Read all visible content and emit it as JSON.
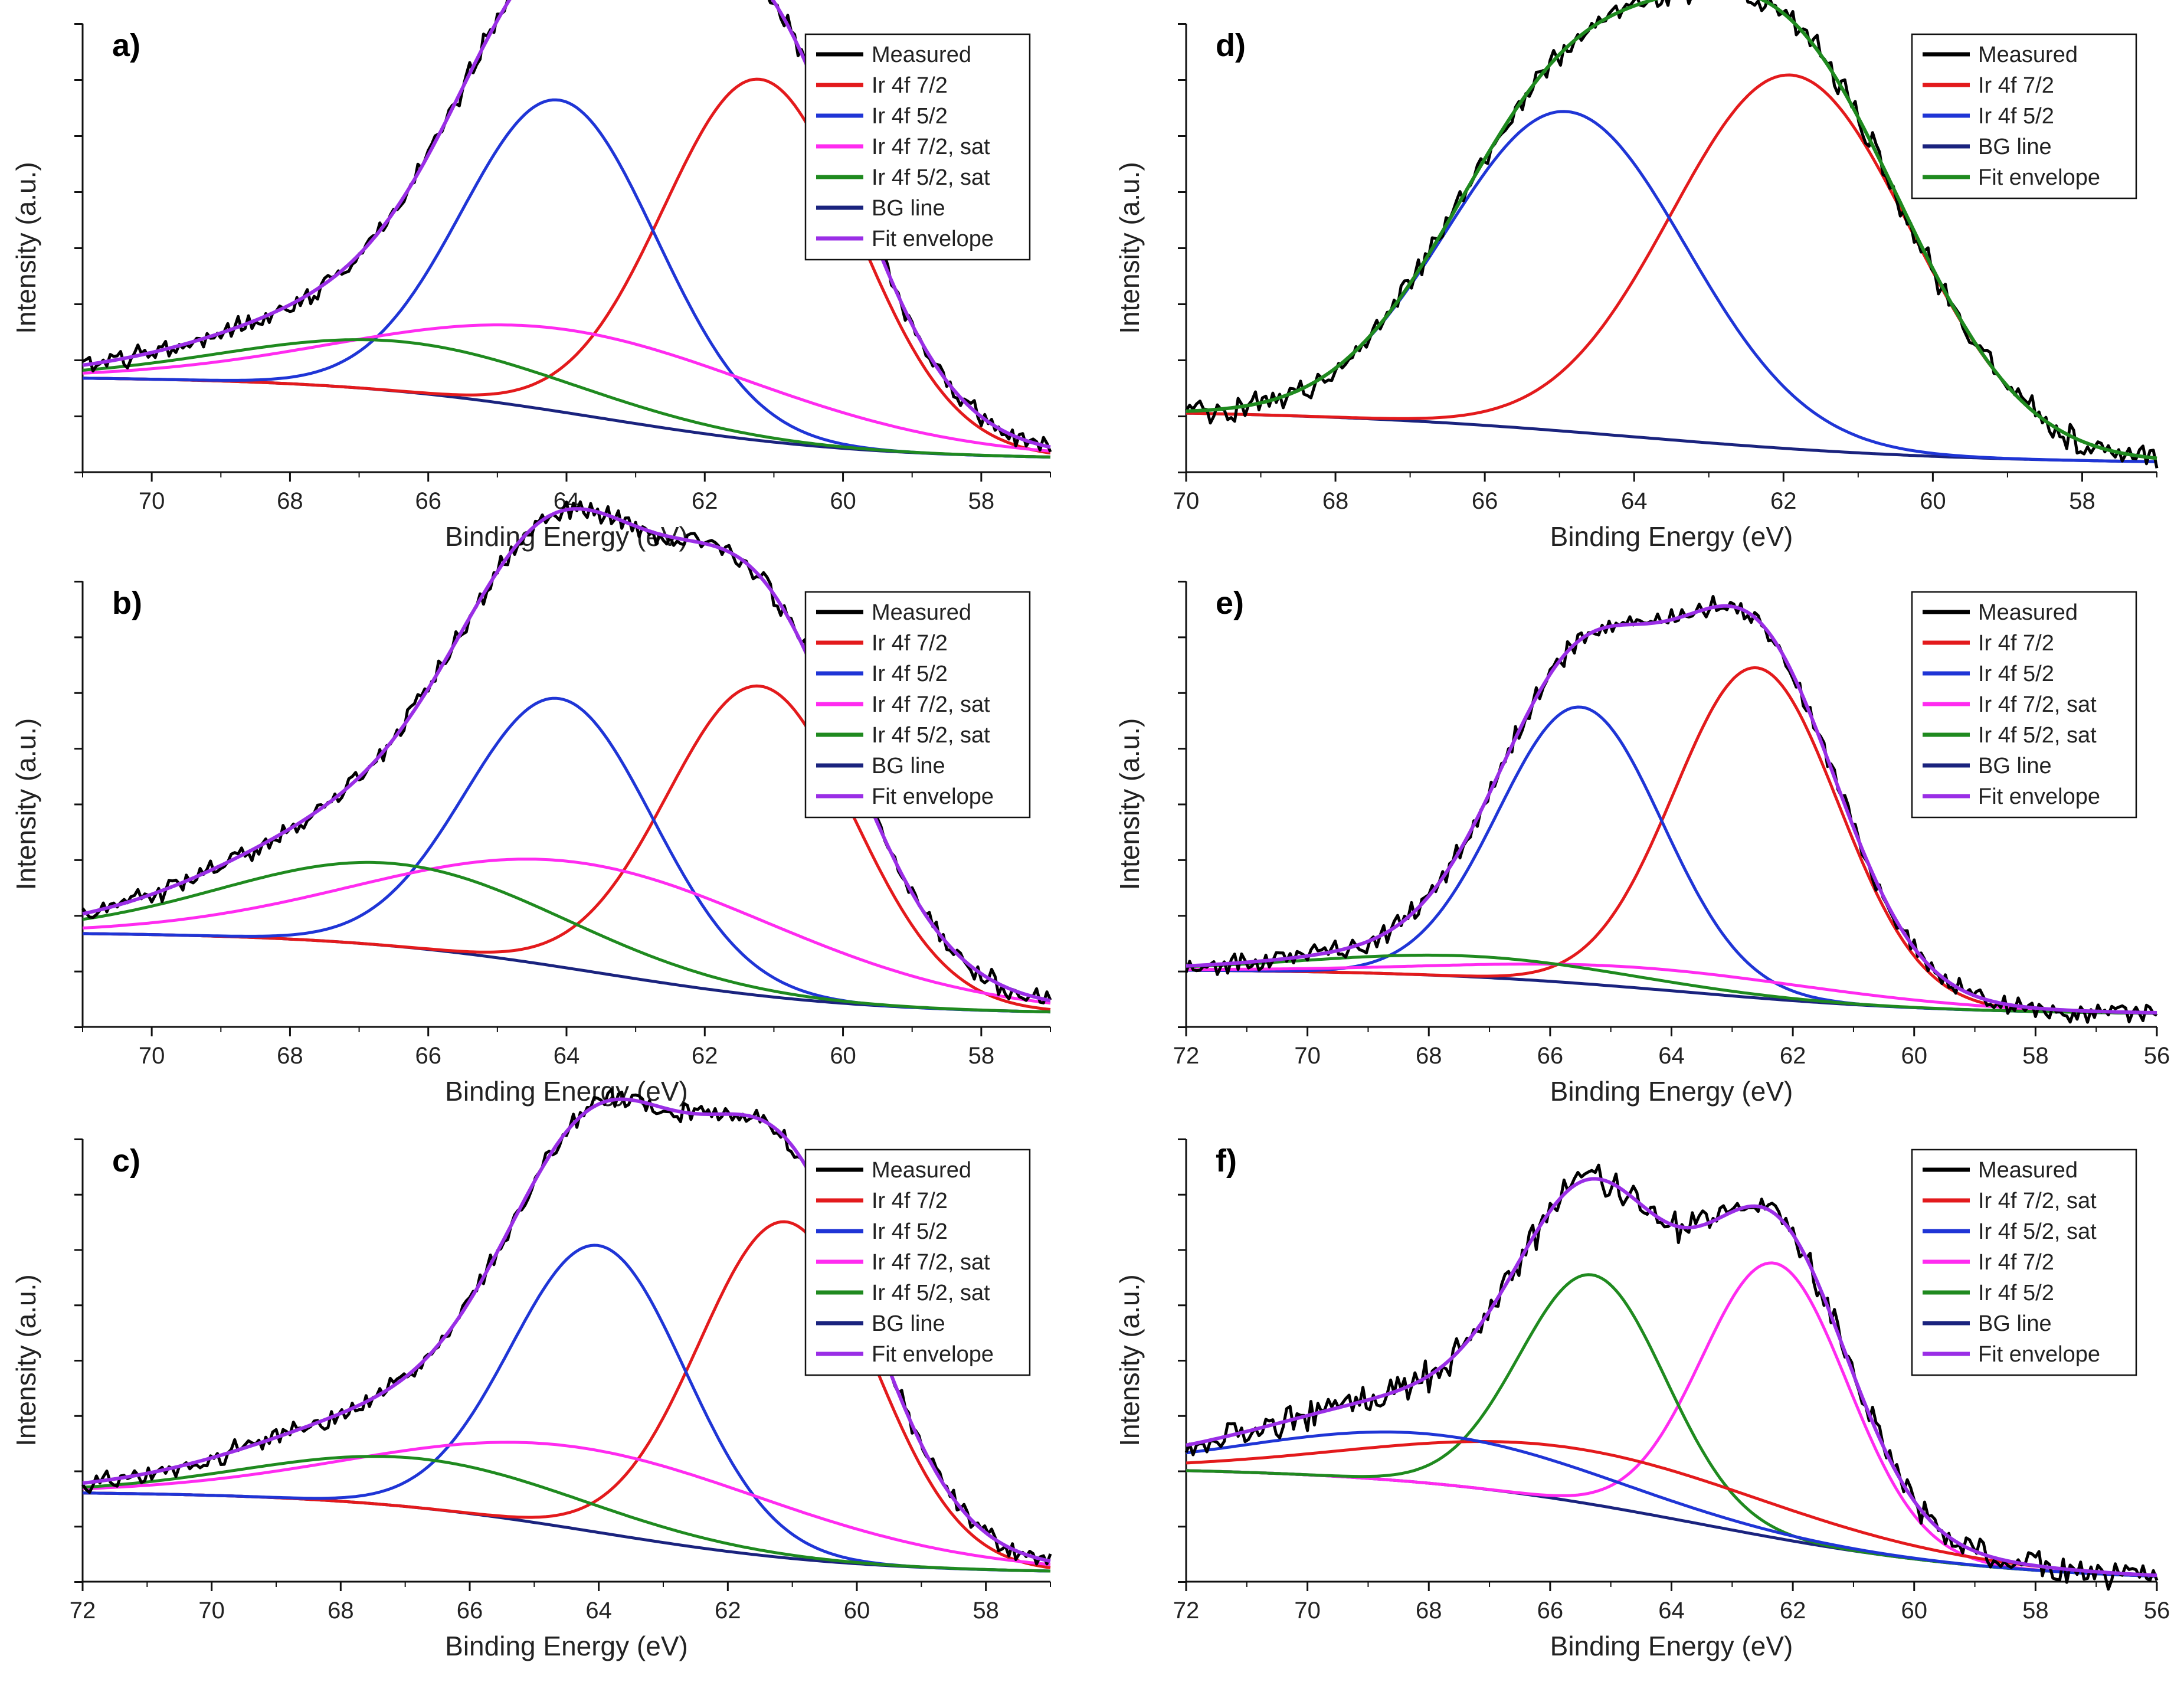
{
  "figure": {
    "colors": {
      "Measured": "#000000",
      "Ir 4f 7/2": "#e31a1c",
      "Ir 4f 5/2": "#1f35d6",
      "Ir 4f 7/2, sat": "#ff2bf0",
      "Ir 4f 5/2, sat": "#1f8a1f",
      "BG line": "#1a237e",
      "Fit envelope": "#9a2ee6"
    }
  },
  "chart_data": [
    {
      "id": "a",
      "panel_label": "a)",
      "type": "line",
      "xlabel": "Binding Energy (eV)",
      "ylabel": "Intensity (a.u.)",
      "xlim": [
        71,
        57
      ],
      "ylim": [
        0,
        1.08
      ],
      "xticks": [
        70,
        68,
        66,
        64,
        62,
        60,
        58
      ],
      "noise": 0.02,
      "legend": [
        "Measured",
        "Ir 4f 7/2",
        "Ir 4f 5/2",
        "Ir 4f 7/2, sat",
        "Ir 4f 5/2, sat",
        "BG line",
        "Fit envelope"
      ],
      "background": {
        "low_energy_level": 0.03,
        "high_energy_level": 0.23,
        "midpoint": 63.5,
        "width": 1.9
      },
      "peaks": [
        {
          "name": "Ir 4f 7/2",
          "center": 61.2,
          "height": 0.87,
          "width": 1.4
        },
        {
          "name": "Ir 4f 5/2",
          "center": 64.1,
          "height": 0.75,
          "width": 1.4
        },
        {
          "name": "Ir 4f 7/2, sat",
          "center": 63.9,
          "height": 0.2,
          "width": 3.0
        },
        {
          "name": "Ir 4f 5/2, sat",
          "center": 66.4,
          "height": 0.12,
          "width": 2.4
        }
      ]
    },
    {
      "id": "b",
      "panel_label": "b)",
      "type": "line",
      "xlabel": "Binding Energy (eV)",
      "ylabel": "Intensity (a.u.)",
      "xlim": [
        71,
        57
      ],
      "ylim": [
        0,
        1.08
      ],
      "xticks": [
        70,
        68,
        66,
        64,
        62,
        60,
        58
      ],
      "noise": 0.02,
      "legend": [
        "Measured",
        "Ir 4f 7/2",
        "Ir 4f 5/2",
        "Ir 4f 7/2, sat",
        "Ir 4f 5/2, sat",
        "BG line",
        "Fit envelope"
      ],
      "background": {
        "low_energy_level": 0.03,
        "high_energy_level": 0.23,
        "midpoint": 63.5,
        "width": 1.9
      },
      "peaks": [
        {
          "name": "Ir 4f 7/2",
          "center": 61.2,
          "height": 0.75,
          "width": 1.35
        },
        {
          "name": "Ir 4f 5/2",
          "center": 64.1,
          "height": 0.65,
          "width": 1.35
        },
        {
          "name": "Ir 4f 7/2, sat",
          "center": 63.7,
          "height": 0.26,
          "width": 3.0
        },
        {
          "name": "Ir 4f 5/2, sat",
          "center": 66.5,
          "height": 0.2,
          "width": 2.4
        }
      ]
    },
    {
      "id": "c",
      "panel_label": "c)",
      "type": "line",
      "xlabel": "Binding Energy (eV)",
      "ylabel": "Intensity (a.u.)",
      "xlim": [
        72,
        57
      ],
      "ylim": [
        0,
        1.08
      ],
      "xticks": [
        72,
        70,
        68,
        66,
        64,
        62,
        60,
        58
      ],
      "noise": 0.02,
      "legend": [
        "Measured",
        "Ir 4f 7/2",
        "Ir 4f 5/2",
        "Ir 4f 7/2, sat",
        "Ir 4f 5/2, sat",
        "BG line",
        "Fit envelope"
      ],
      "background": {
        "low_energy_level": 0.02,
        "high_energy_level": 0.22,
        "midpoint": 64.0,
        "width": 2.0
      },
      "peaks": [
        {
          "name": "Ir 4f 7/2",
          "center": 61.1,
          "height": 0.82,
          "width": 1.35
        },
        {
          "name": "Ir 4f 5/2",
          "center": 64.0,
          "height": 0.7,
          "width": 1.35
        },
        {
          "name": "Ir 4f 7/2, sat",
          "center": 64.2,
          "height": 0.2,
          "width": 3.2
        },
        {
          "name": "Ir 4f 5/2, sat",
          "center": 66.8,
          "height": 0.12,
          "width": 2.5
        }
      ]
    },
    {
      "id": "d",
      "panel_label": "d)",
      "type": "line",
      "xlabel": "Binding Energy (eV)",
      "ylabel": "Intensity (a.u.)",
      "xlim": [
        70,
        57
      ],
      "ylim": [
        0,
        1.08
      ],
      "xticks": [
        70,
        68,
        66,
        64,
        62,
        60,
        58
      ],
      "noise": 0.025,
      "legend": [
        "Measured",
        "Ir 4f 7/2",
        "Ir 4f 5/2",
        "BG line",
        "Fit envelope"
      ],
      "envelope_color_key": "Ir 4f 5/2, sat",
      "background": {
        "low_energy_level": 0.02,
        "high_energy_level": 0.15,
        "midpoint": 64.0,
        "width": 2.2
      },
      "peaks": [
        {
          "name": "Ir 4f 7/2",
          "center": 61.9,
          "height": 0.9,
          "width": 1.6
        },
        {
          "name": "Ir 4f 5/2",
          "center": 64.9,
          "height": 0.77,
          "width": 1.6
        }
      ]
    },
    {
      "id": "e",
      "panel_label": "e)",
      "type": "line",
      "xlabel": "Binding Energy (eV)",
      "ylabel": "Intensity (a.u.)",
      "xlim": [
        72,
        56
      ],
      "ylim": [
        0,
        1.08
      ],
      "xticks": [
        72,
        70,
        68,
        66,
        64,
        62,
        60,
        58,
        56
      ],
      "noise": 0.02,
      "legend": [
        "Measured",
        "Ir 4f 7/2",
        "Ir 4f 5/2",
        "Ir 4f 7/2, sat",
        "Ir 4f 5/2, sat",
        "BG line",
        "Fit envelope"
      ],
      "background": {
        "low_energy_level": 0.03,
        "high_energy_level": 0.14,
        "midpoint": 63.8,
        "width": 2.2
      },
      "peaks": [
        {
          "name": "Ir 4f 7/2",
          "center": 62.6,
          "height": 0.8,
          "width": 1.35
        },
        {
          "name": "Ir 4f 5/2",
          "center": 65.5,
          "height": 0.67,
          "width": 1.35
        },
        {
          "name": "Ir 4f 7/2, sat",
          "center": 64.2,
          "height": 0.05,
          "width": 3.0
        },
        {
          "name": "Ir 4f 5/2, sat",
          "center": 67.3,
          "height": 0.05,
          "width": 2.5
        }
      ]
    },
    {
      "id": "f",
      "panel_label": "f)",
      "type": "line",
      "xlabel": "Binding Energy (eV)",
      "ylabel": "Intensity (a.u.)",
      "xlim": [
        72,
        56
      ],
      "ylim": [
        0,
        1.08
      ],
      "xticks": [
        72,
        70,
        68,
        66,
        64,
        62,
        60,
        58,
        56
      ],
      "noise": 0.03,
      "legend": [
        "Measured",
        "Ir 4f 7/2, sat",
        "Ir 4f 5/2, sat",
        "Ir 4f 7/2",
        "Ir 4f 5/2",
        "BG line",
        "Fit envelope"
      ],
      "color_overrides": {
        "Ir 4f 7/2, sat": "#e31a1c",
        "Ir 4f 5/2, sat": "#1f35d6",
        "Ir 4f 7/2": "#ff2bf0",
        "Ir 4f 5/2": "#1f8a1f"
      },
      "background": {
        "low_energy_level": 0.0,
        "high_energy_level": 0.28,
        "midpoint": 63.5,
        "width": 2.5
      },
      "peaks": [
        {
          "name": "Ir 4f 7/2",
          "center": 62.3,
          "height": 0.67,
          "width": 1.2
        },
        {
          "name": "Ir 4f 5/2",
          "center": 65.3,
          "height": 0.56,
          "width": 1.2
        },
        {
          "name": "Ir 4f 7/2, sat",
          "center": 65.5,
          "height": 0.13,
          "width": 3.3
        },
        {
          "name": "Ir 4f 5/2, sat",
          "center": 68.0,
          "height": 0.12,
          "width": 2.8
        }
      ]
    }
  ]
}
